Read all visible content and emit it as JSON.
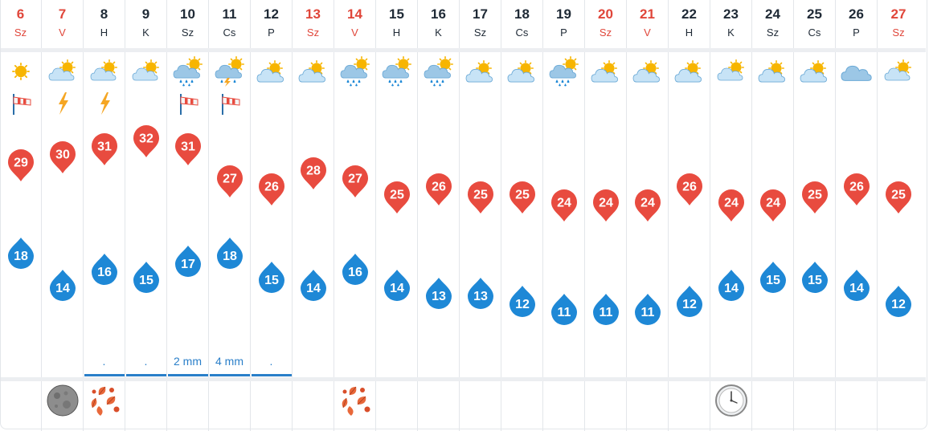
{
  "days": [
    {
      "num": "6",
      "name": "Sz",
      "weekend": true,
      "icon": "sunny-icon",
      "extra": "wind-sock-icon",
      "max": "29",
      "min": "18",
      "precip": "",
      "bottom": ""
    },
    {
      "num": "7",
      "name": "V",
      "weekend": true,
      "icon": "partly-cloudy-icon",
      "extra": "lightning-icon",
      "max": "30",
      "min": "14",
      "precip": "",
      "bottom": "full-moon-icon"
    },
    {
      "num": "8",
      "name": "H",
      "weekend": false,
      "icon": "partly-cloudy-icon",
      "extra": "lightning-icon",
      "max": "31",
      "min": "16",
      "precip": ".",
      "bottom": "autumn-leaves-icon"
    },
    {
      "num": "9",
      "name": "K",
      "weekend": false,
      "icon": "partly-cloudy-icon",
      "extra": "",
      "max": "32",
      "min": "15",
      "precip": ".",
      "bottom": ""
    },
    {
      "num": "10",
      "name": "Sz",
      "weekend": false,
      "icon": "rain-cloud-sun-icon",
      "extra": "wind-sock-icon",
      "max": "31",
      "min": "17",
      "precip": "2 mm",
      "bottom": ""
    },
    {
      "num": "11",
      "name": "Cs",
      "weekend": false,
      "icon": "thunder-rain-icon",
      "extra": "wind-sock-icon",
      "max": "27",
      "min": "18",
      "precip": "4 mm",
      "bottom": ""
    },
    {
      "num": "12",
      "name": "P",
      "weekend": false,
      "icon": "sun-behind-cloud-icon",
      "extra": "",
      "max": "26",
      "min": "15",
      "precip": ".",
      "bottom": ""
    },
    {
      "num": "13",
      "name": "Sz",
      "weekend": true,
      "icon": "sun-behind-cloud-icon",
      "extra": "",
      "max": "28",
      "min": "14",
      "precip": "",
      "bottom": ""
    },
    {
      "num": "14",
      "name": "V",
      "weekend": true,
      "icon": "rain-cloud-sun-icon",
      "extra": "",
      "max": "27",
      "min": "16",
      "precip": "",
      "bottom": "autumn-leaves-icon"
    },
    {
      "num": "15",
      "name": "H",
      "weekend": false,
      "icon": "rain-cloud-sun-icon",
      "extra": "",
      "max": "25",
      "min": "14",
      "precip": "",
      "bottom": ""
    },
    {
      "num": "16",
      "name": "K",
      "weekend": false,
      "icon": "rain-cloud-sun-icon",
      "extra": "",
      "max": "26",
      "min": "13",
      "precip": "",
      "bottom": ""
    },
    {
      "num": "17",
      "name": "Sz",
      "weekend": false,
      "icon": "sun-behind-cloud-icon",
      "extra": "",
      "max": "25",
      "min": "13",
      "precip": "",
      "bottom": ""
    },
    {
      "num": "18",
      "name": "Cs",
      "weekend": false,
      "icon": "sun-behind-cloud-icon",
      "extra": "",
      "max": "25",
      "min": "12",
      "precip": "",
      "bottom": ""
    },
    {
      "num": "19",
      "name": "P",
      "weekend": false,
      "icon": "rain-cloud-sun-icon",
      "extra": "",
      "max": "24",
      "min": "11",
      "precip": "",
      "bottom": ""
    },
    {
      "num": "20",
      "name": "Sz",
      "weekend": true,
      "icon": "sun-behind-cloud-icon",
      "extra": "",
      "max": "24",
      "min": "11",
      "precip": "",
      "bottom": ""
    },
    {
      "num": "21",
      "name": "V",
      "weekend": true,
      "icon": "sun-behind-cloud-icon",
      "extra": "",
      "max": "24",
      "min": "11",
      "precip": "",
      "bottom": ""
    },
    {
      "num": "22",
      "name": "H",
      "weekend": false,
      "icon": "sun-behind-cloud-icon",
      "extra": "",
      "max": "26",
      "min": "12",
      "precip": "",
      "bottom": ""
    },
    {
      "num": "23",
      "name": "K",
      "weekend": false,
      "icon": "partly-cloudy-icon",
      "extra": "",
      "max": "24",
      "min": "14",
      "precip": "",
      "bottom": "clock-icon"
    },
    {
      "num": "24",
      "name": "Sz",
      "weekend": false,
      "icon": "sun-behind-cloud-icon",
      "extra": "",
      "max": "24",
      "min": "15",
      "precip": "",
      "bottom": ""
    },
    {
      "num": "25",
      "name": "Cs",
      "weekend": false,
      "icon": "sun-behind-cloud-icon",
      "extra": "",
      "max": "25",
      "min": "15",
      "precip": "",
      "bottom": ""
    },
    {
      "num": "26",
      "name": "P",
      "weekend": false,
      "icon": "cloudy-icon",
      "extra": "",
      "max": "26",
      "min": "14",
      "precip": "",
      "bottom": ""
    },
    {
      "num": "27",
      "name": "Sz",
      "weekend": true,
      "icon": "partly-cloudy-icon",
      "extra": "",
      "max": "25",
      "min": "12",
      "precip": "",
      "bottom": ""
    }
  ],
  "colors": {
    "max": "#e84b3f",
    "min": "#1e88d6",
    "weekend": "#e0463a",
    "text": "#1f2a36",
    "precip": "#2a7fc9"
  }
}
